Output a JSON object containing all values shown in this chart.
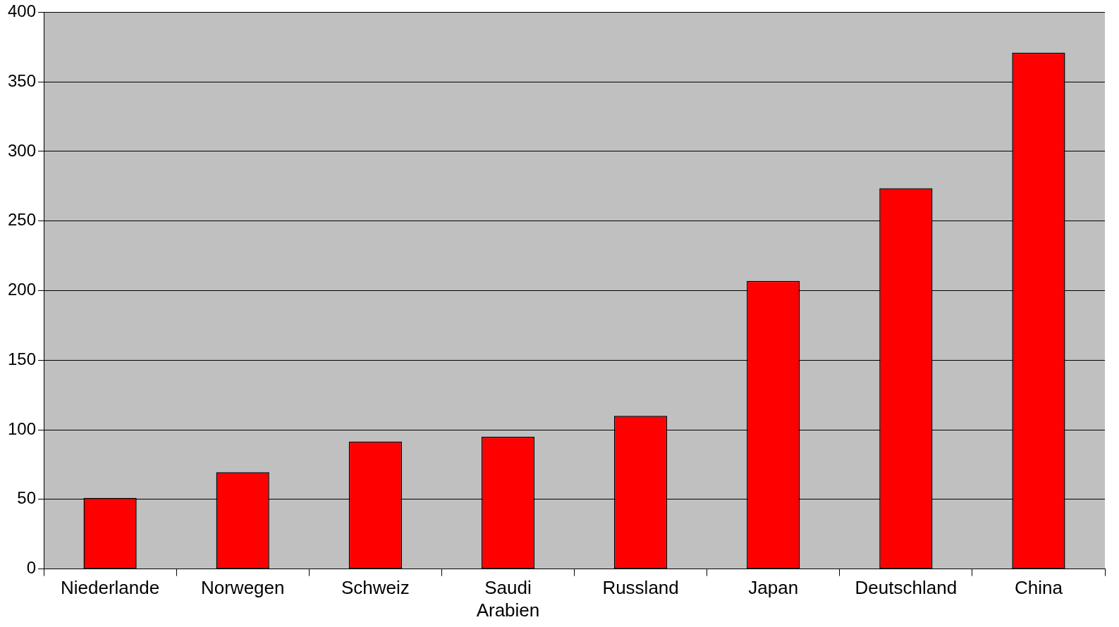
{
  "chart_data": {
    "type": "bar",
    "categories": [
      "Niederlande",
      "Norwegen",
      "Schweiz",
      "Saudi Arabien",
      "Russland",
      "Japan",
      "Deutschland",
      "China"
    ],
    "values": [
      51,
      69.5,
      91.5,
      95,
      110,
      207,
      273.5,
      371
    ],
    "color": "#ff0000",
    "ylim": [
      0,
      400
    ],
    "yticks": [
      0,
      50,
      100,
      150,
      200,
      250,
      300,
      350,
      400
    ],
    "grid": "y"
  }
}
